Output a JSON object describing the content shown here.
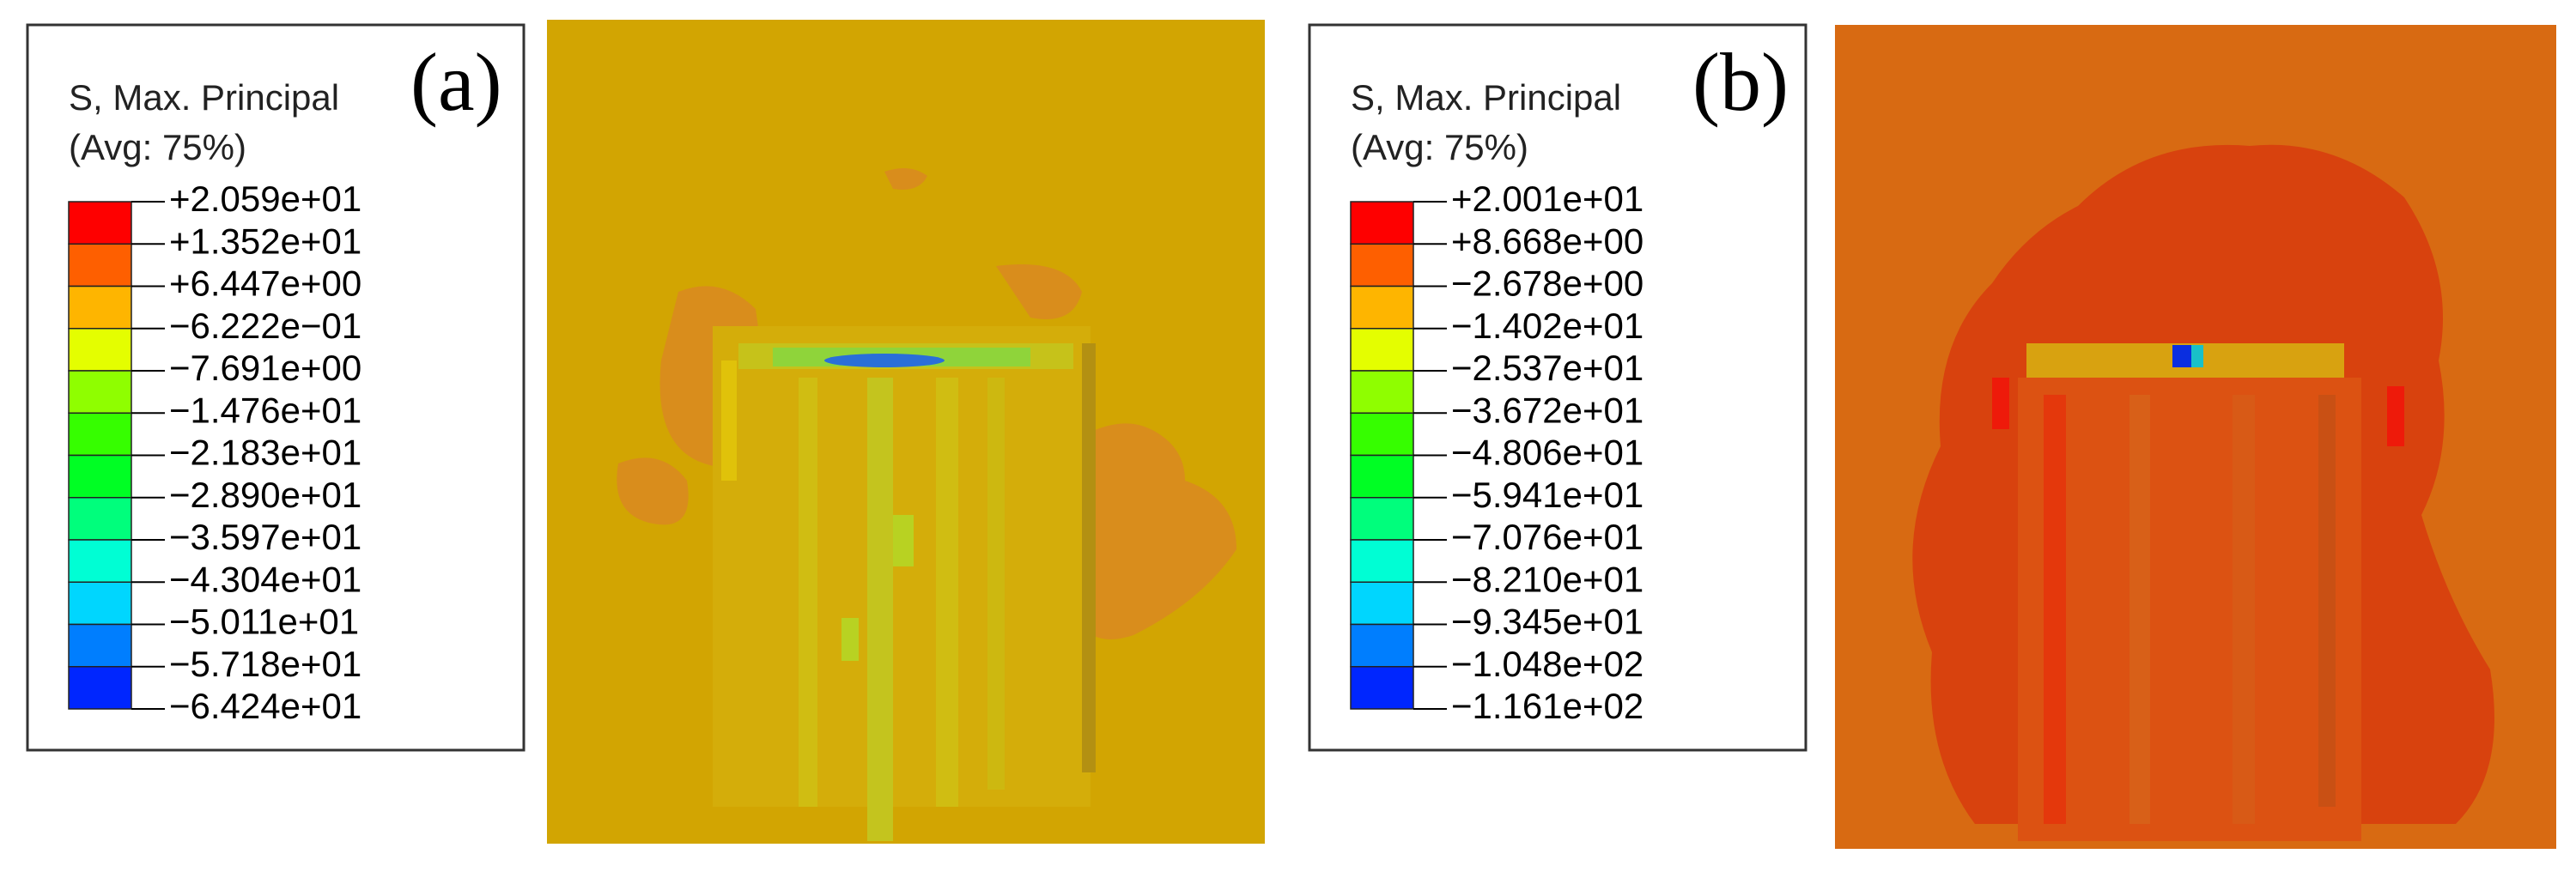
{
  "panels": [
    {
      "label": "(a)",
      "legend_title": "S, Max. Principal",
      "legend_subtitle": "(Avg: 75%)",
      "legend_values": [
        "+2.059e+01",
        "+1.352e+01",
        "+6.447e+00",
        "−6.222e−01",
        "−7.691e+00",
        "−1.476e+01",
        "−2.183e+01",
        "−2.890e+01",
        "−3.597e+01",
        "−4.304e+01",
        "−5.011e+01",
        "−5.718e+01",
        "−6.424e+01"
      ]
    },
    {
      "label": "(b)",
      "legend_title": "S, Max. Principal",
      "legend_subtitle": "(Avg: 75%)",
      "legend_values": [
        "+2.001e+01",
        "+8.668e+00",
        "−2.678e+00",
        "−1.402e+01",
        "−2.537e+01",
        "−3.672e+01",
        "−4.806e+01",
        "−5.941e+01",
        "−7.076e+01",
        "−8.210e+01",
        "−9.345e+01",
        "−1.048e+02",
        "−1.161e+02"
      ]
    }
  ]
}
